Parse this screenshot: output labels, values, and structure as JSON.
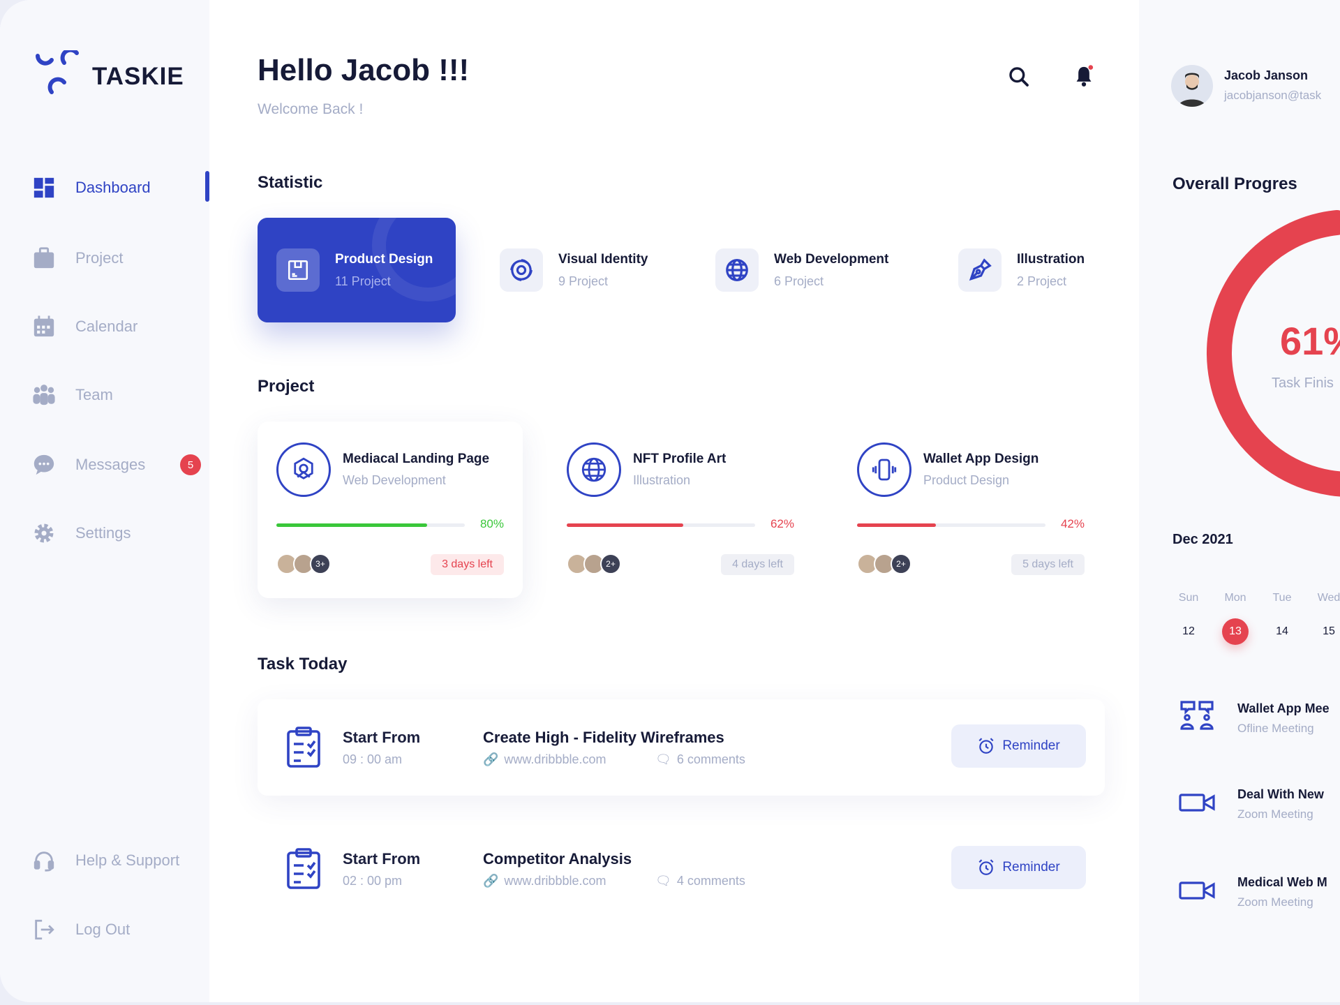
{
  "brand": {
    "name": "TASKIE",
    "color": "#2f43c4"
  },
  "sidebar": {
    "items": [
      {
        "label": "Dashboard",
        "icon": "grid-icon",
        "active": true
      },
      {
        "label": "Project",
        "icon": "briefcase-icon"
      },
      {
        "label": "Calendar",
        "icon": "calendar-icon"
      },
      {
        "label": "Team",
        "icon": "team-icon"
      },
      {
        "label": "Messages",
        "icon": "chat-icon",
        "badge": "5"
      },
      {
        "label": "Settings",
        "icon": "gear-icon"
      }
    ],
    "bottom": [
      {
        "label": "Help & Support",
        "icon": "headset-icon"
      },
      {
        "label": "Log Out",
        "icon": "logout-icon"
      }
    ]
  },
  "header": {
    "title": "Hello Jacob !!!",
    "subtitle": "Welcome Back !"
  },
  "user": {
    "name": "Jacob Janson",
    "email": "jacobjanson@task"
  },
  "statistic": {
    "heading": "Statistic",
    "items": [
      {
        "title": "Product Design",
        "count": "11 Project",
        "icon": "box-icon",
        "selected": true
      },
      {
        "title": "Visual Identity",
        "count": "9 Project",
        "icon": "swirl-icon"
      },
      {
        "title": "Web Development",
        "count": "6 Project",
        "icon": "globe-icon"
      },
      {
        "title": "Illustration",
        "count": "2 Project",
        "icon": "pen-tool-icon"
      }
    ]
  },
  "projects": {
    "heading": "Project",
    "items": [
      {
        "title": "Mediacal Landing Page",
        "category": "Web Development",
        "progress": 80,
        "progress_label": "80%",
        "color": "#3ac73a",
        "label_color": "#3ac73a",
        "extra": "3+",
        "days": "3 days left",
        "urgent": true
      },
      {
        "title": "NFT Profile Art",
        "category": "Illustration",
        "progress": 62,
        "progress_label": "62%",
        "color": "#e5434f",
        "label_color": "#e5434f",
        "extra": "2+",
        "days": "4 days left"
      },
      {
        "title": "Wallet App Design",
        "category": "Product Design",
        "progress": 42,
        "progress_label": "42%",
        "color": "#e5434f",
        "label_color": "#e5434f",
        "extra": "2+",
        "days": "5 days left"
      }
    ]
  },
  "tasks": {
    "heading": "Task Today",
    "items": [
      {
        "start_label": "Start From",
        "time": "09 : 00 am",
        "title": "Create High - Fidelity Wireframes",
        "link": "www.dribbble.com",
        "comments": "6 comments",
        "button": "Reminder"
      },
      {
        "start_label": "Start From",
        "time": "02 : 00 pm",
        "title": "Competitor Analysis",
        "link": "www.dribbble.com",
        "comments": "4 comments",
        "button": "Reminder"
      }
    ]
  },
  "overall": {
    "heading": "Overall Progres",
    "value": 61,
    "value_label": "61%",
    "caption": "Task Finis",
    "color": "#e5434f"
  },
  "calendar": {
    "month": "Dec 2021",
    "days": [
      {
        "d": "Sun",
        "n": "12"
      },
      {
        "d": "Mon",
        "n": "13",
        "selected": true
      },
      {
        "d": "Tue",
        "n": "14"
      },
      {
        "d": "Wed",
        "n": "15"
      }
    ]
  },
  "events": [
    {
      "title": "Wallet App Mee",
      "type": "Ofline Meeting",
      "icon": "meeting-icon"
    },
    {
      "title": "Deal With New",
      "type": "Zoom Meeting",
      "icon": "video-icon"
    },
    {
      "title": "Medical Web M",
      "type": "Zoom Meeting",
      "icon": "video-icon"
    }
  ]
}
